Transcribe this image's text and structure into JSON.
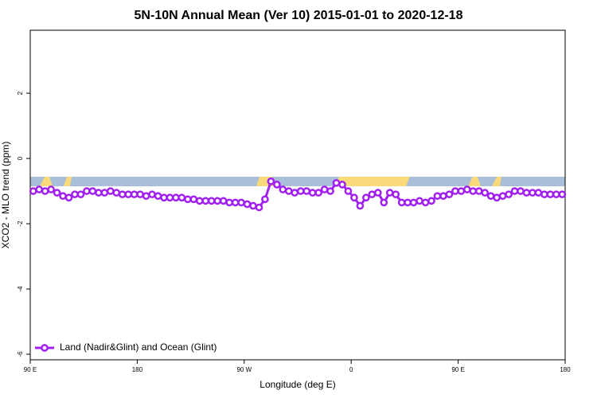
{
  "chart_data": {
    "type": "line",
    "title": "5N-10N Annual Mean (Ver 10)   2015-01-01 to 2020-12-18",
    "x_label": "Longitude (deg E)",
    "y_label": "XCO2 - MLO trend (ppm)",
    "xlim": [
      90,
      540
    ],
    "xticks": [
      {
        "value": 90,
        "label": "90 E"
      },
      {
        "value": 180,
        "label": "180"
      },
      {
        "value": 270,
        "label": "90 W"
      },
      {
        "value": 360,
        "label": "0"
      },
      {
        "value": 450,
        "label": "90 E"
      },
      {
        "value": 540,
        "label": "180"
      }
    ],
    "ylim": [
      -6.17,
      3.93
    ],
    "yticks": [
      2,
      0,
      -2,
      -4,
      -6
    ],
    "legend": "bottom-left",
    "x": [
      92.5,
      97.5,
      102.5,
      107.5,
      112.5,
      117.5,
      122.5,
      127.5,
      132.5,
      137.5,
      142.5,
      147.5,
      152.5,
      157.5,
      162.5,
      167.5,
      172.5,
      177.5,
      182.5,
      187.5,
      192.5,
      197.5,
      202.5,
      207.5,
      212.5,
      217.5,
      222.5,
      227.5,
      232.5,
      237.5,
      242.5,
      247.5,
      252.5,
      257.5,
      262.5,
      267.5,
      272.5,
      277.5,
      282.5,
      287.5,
      292.5,
      297.5,
      302.5,
      307.5,
      312.5,
      317.5,
      322.5,
      327.5,
      332.5,
      337.5,
      342.5,
      347.5,
      352.5,
      357.5,
      362.5,
      367.5,
      372.5,
      377.5,
      382.5,
      387.5,
      392.5,
      397.5,
      402.5,
      407.5,
      412.5,
      417.5,
      422.5,
      427.5,
      432.5,
      437.5,
      442.5,
      447.5,
      452.5,
      457.5,
      462.5,
      467.5,
      472.5,
      477.5,
      482.5,
      487.5,
      492.5,
      497.5,
      502.5,
      507.5,
      512.5,
      517.5,
      522.5,
      527.5,
      532.5,
      537.5
    ],
    "series": [
      {
        "name": "Land (Nadir&Glint) and Ocean (Glint)",
        "color": "#a020f0",
        "values": [
          -1.0,
          -0.95,
          -1.0,
          -0.95,
          -1.05,
          -1.15,
          -1.2,
          -1.1,
          -1.1,
          -1.0,
          -1.0,
          -1.05,
          -1.05,
          -1.0,
          -1.05,
          -1.1,
          -1.1,
          -1.1,
          -1.1,
          -1.15,
          -1.1,
          -1.15,
          -1.2,
          -1.2,
          -1.2,
          -1.2,
          -1.25,
          -1.25,
          -1.3,
          -1.3,
          -1.3,
          -1.3,
          -1.3,
          -1.35,
          -1.35,
          -1.35,
          -1.4,
          -1.45,
          -1.5,
          -1.25,
          -0.7,
          -0.8,
          -0.95,
          -1.0,
          -1.05,
          -1.0,
          -1.0,
          -1.05,
          -1.05,
          -0.95,
          -1.0,
          -0.75,
          -0.8,
          -1.0,
          -1.2,
          -1.45,
          -1.2,
          -1.1,
          -1.05,
          -1.35,
          -1.05,
          -1.1,
          -1.35,
          -1.35,
          -1.35,
          -1.3,
          -1.35,
          -1.3,
          -1.15,
          -1.15,
          -1.1,
          -1.0,
          -1.0,
          -0.95,
          -1.0,
          -1.0,
          -1.05,
          -1.15,
          -1.2,
          -1.15,
          -1.1,
          -1.0,
          -1.0,
          -1.05,
          -1.05,
          -1.05,
          -1.1,
          -1.1,
          -1.1,
          -1.1
        ]
      }
    ]
  }
}
